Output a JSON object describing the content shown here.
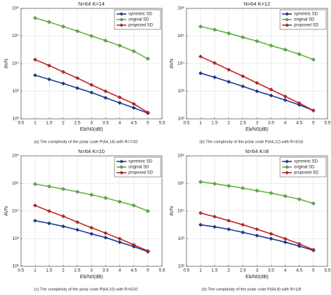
{
  "chart_data": [
    {
      "type": "line",
      "title": "N=64 K=14",
      "caption": "(a) The complexity of the polar code P(64,14) with R=7/32",
      "xlabel": "Eb/N0(dB)",
      "ylabel": "AVN",
      "x": [
        1,
        1.5,
        2,
        2.5,
        3,
        3.5,
        4,
        4.5,
        5
      ],
      "series": [
        {
          "name": "symmtric SD",
          "color": "#1c3a8e",
          "values": [
            3800,
            2700,
            1900,
            1300,
            900,
            580,
            380,
            250,
            160
          ]
        },
        {
          "name": "original SD",
          "color": "#5cb83c",
          "values": [
            450000,
            320000,
            220000,
            150000,
            100000,
            68000,
            45000,
            28000,
            15000
          ]
        },
        {
          "name": "proposed SD",
          "color": "#cc2222",
          "values": [
            14000,
            8500,
            5000,
            3000,
            1700,
            1000,
            600,
            350,
            170
          ]
        }
      ],
      "xlim": [
        0.5,
        5.5
      ],
      "xticks": [
        0.5,
        1,
        1.5,
        2,
        2.5,
        3,
        3.5,
        4,
        4.5,
        5,
        5.5
      ],
      "ylim": [
        100,
        1000000
      ],
      "yticks": [
        {
          "value": 100,
          "label": "10²"
        },
        {
          "value": 1000,
          "label": "10³"
        },
        {
          "value": 10000,
          "label": "10⁴"
        },
        {
          "value": 100000,
          "label": "10⁵"
        },
        {
          "value": 1000000,
          "label": "10⁶"
        }
      ],
      "log_y": true,
      "grid": true,
      "legend": "upper right"
    },
    {
      "type": "line",
      "title": "N=64 K=12",
      "caption": "(b) The complexity of the polar code P(64,12) with R=3/16",
      "xlabel": "Eb/N0(dB)",
      "ylabel": "AVN",
      "x": [
        1,
        1.5,
        2,
        2.5,
        3,
        3.5,
        4,
        4.5,
        5
      ],
      "series": [
        {
          "name": "symmtric SD",
          "color": "#1c3a8e",
          "values": [
            4500,
            3200,
            2200,
            1500,
            1000,
            700,
            480,
            320,
            200
          ]
        },
        {
          "name": "original SD",
          "color": "#5cb83c",
          "values": [
            220000,
            170000,
            125000,
            90000,
            65000,
            45000,
            32000,
            22000,
            14000
          ]
        },
        {
          "name": "proposed SD",
          "color": "#cc2222",
          "values": [
            18000,
            10500,
            6000,
            3500,
            2000,
            1150,
            650,
            370,
            200
          ]
        }
      ],
      "xlim": [
        0.5,
        5.5
      ],
      "xticks": [
        0.5,
        1,
        1.5,
        2,
        2.5,
        3,
        3.5,
        4,
        4.5,
        5,
        5.5
      ],
      "ylim": [
        100,
        1000000
      ],
      "yticks": [
        {
          "value": 100,
          "label": "10²"
        },
        {
          "value": 1000,
          "label": "10³"
        },
        {
          "value": 10000,
          "label": "10⁴"
        },
        {
          "value": 100000,
          "label": "10⁵"
        },
        {
          "value": 1000000,
          "label": "10⁶"
        }
      ],
      "log_y": true,
      "grid": true,
      "legend": "upper right"
    },
    {
      "type": "line",
      "title": "N=64 K=10",
      "caption": "(c) The complexity of the polar code P(64,10) with R=5/32",
      "xlabel": "Eb/N0(dB)",
      "ylabel": "AVN",
      "x": [
        1,
        1.5,
        2,
        2.5,
        3,
        3.5,
        4,
        4.5,
        5
      ],
      "series": [
        {
          "name": "symmtric SD",
          "color": "#1c3a8e",
          "values": [
            4500,
            3600,
            2800,
            2100,
            1500,
            1100,
            750,
            520,
            340
          ]
        },
        {
          "name": "original SD",
          "color": "#5cb83c",
          "values": [
            95000,
            78000,
            63000,
            50000,
            39000,
            30000,
            22000,
            16000,
            10000
          ]
        },
        {
          "name": "proposed SD",
          "color": "#cc2222",
          "values": [
            16000,
            10000,
            6500,
            4000,
            2500,
            1600,
            1000,
            600,
            360
          ]
        }
      ],
      "xlim": [
        0.5,
        5.5
      ],
      "xticks": [
        0.5,
        1,
        1.5,
        2,
        2.5,
        3,
        3.5,
        4,
        4.5,
        5,
        5.5
      ],
      "ylim": [
        100,
        1000000
      ],
      "yticks": [
        {
          "value": 100,
          "label": "10²"
        },
        {
          "value": 1000,
          "label": "10³"
        },
        {
          "value": 10000,
          "label": "10⁴"
        },
        {
          "value": 100000,
          "label": "10⁵"
        },
        {
          "value": 1000000,
          "label": "10⁶"
        }
      ],
      "log_y": true,
      "grid": true,
      "legend": "upper right"
    },
    {
      "type": "line",
      "title": "N=64 K=8",
      "caption": "(d) The complexity of the polar code P(64,8) with R=1/8",
      "xlabel": "Eb/N0(dB)",
      "ylabel": "AVN",
      "x": [
        1,
        1.5,
        2,
        2.5,
        3,
        3.5,
        4,
        4.5,
        5
      ],
      "series": [
        {
          "name": "symmtric SD",
          "color": "#1c3a8e",
          "values": [
            3200,
            2700,
            2200,
            1700,
            1300,
            1000,
            750,
            540,
            380
          ]
        },
        {
          "name": "original SD",
          "color": "#5cb83c",
          "values": [
            115000,
            98000,
            82000,
            68000,
            55000,
            45000,
            35000,
            27000,
            19000
          ]
        },
        {
          "name": "proposed SD",
          "color": "#cc2222",
          "values": [
            8500,
            6300,
            4500,
            3200,
            2200,
            1500,
            1000,
            650,
            400
          ]
        }
      ],
      "xlim": [
        0.5,
        5.5
      ],
      "xticks": [
        0.5,
        1,
        1.5,
        2,
        2.5,
        3,
        3.5,
        4,
        4.5,
        5,
        5.5
      ],
      "ylim": [
        100,
        1000000
      ],
      "yticks": [
        {
          "value": 100,
          "label": "10²"
        },
        {
          "value": 1000,
          "label": "10³"
        },
        {
          "value": 10000,
          "label": "10⁴"
        },
        {
          "value": 100000,
          "label": "10⁵"
        },
        {
          "value": 1000000,
          "label": "10⁶"
        }
      ],
      "log_y": true,
      "grid": true,
      "legend": "upper right"
    }
  ]
}
